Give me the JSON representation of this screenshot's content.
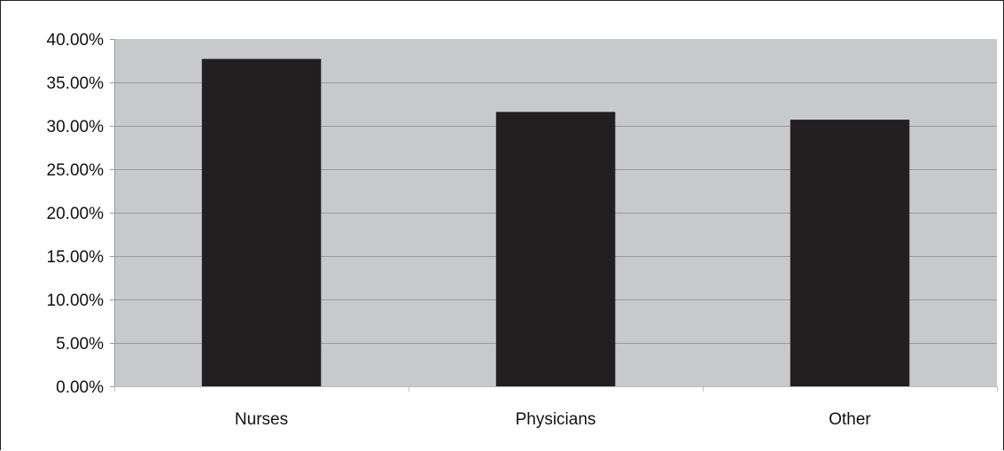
{
  "colors": {
    "plot_background": "#c8c9cb",
    "bar_fill": "#231f20",
    "gridline": "#9a9a9a",
    "frame": "#222222"
  },
  "chart_data": {
    "type": "bar",
    "categories": [
      "Nurses",
      "Physicians",
      "Other"
    ],
    "values": [
      37.7,
      31.6,
      30.7
    ],
    "ylim": [
      0,
      40
    ],
    "ytick_step": 5,
    "ytick_labels": [
      "0.00%",
      "5.00%",
      "10.00%",
      "15.00%",
      "20.00%",
      "25.00%",
      "30.00%",
      "35.00%",
      "40.00%"
    ],
    "grid": true,
    "legend": "none"
  }
}
